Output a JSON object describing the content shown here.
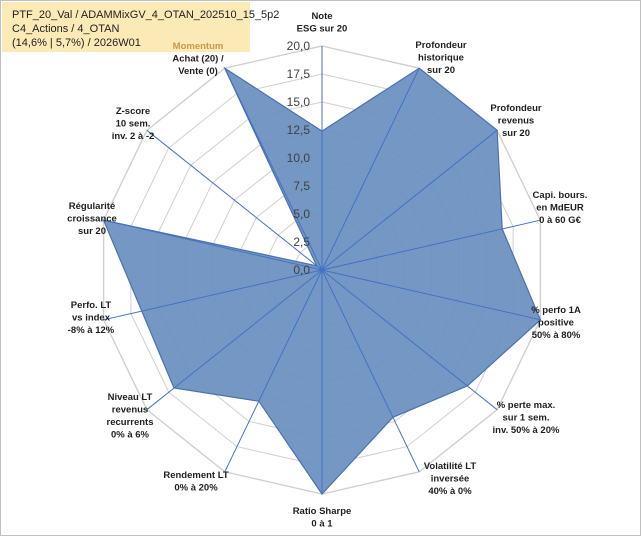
{
  "header": {
    "line1": "PTF_20_Val / ADAMMixGV_4_OTAN_202510_15_5p2",
    "line2": "C4_Actions / 4_OTAN",
    "line3": "(14,6% | 5,7%) / 2026W01"
  },
  "chart_data": {
    "type": "radar",
    "rmax": 20,
    "ticks": [
      "0,0",
      "2,5",
      "5,0",
      "7,5",
      "10,0",
      "12,5",
      "15,0",
      "17,5",
      "20,0"
    ],
    "axes": [
      {
        "lines": [
          "Note",
          "ESG sur 20"
        ],
        "value": 12.4
      },
      {
        "lines": [
          "Profondeur",
          "historique",
          "sur 20"
        ],
        "value": 20
      },
      {
        "lines": [
          "Profondeur",
          "revenus",
          "sur 20"
        ],
        "value": 20
      },
      {
        "lines": [
          "Capi. bours.",
          "en MdEUR",
          "0 à 60 G€"
        ],
        "value": 16.5
      },
      {
        "lines": [
          "% perfo 1A",
          "positive",
          "50% à 80%"
        ],
        "value": 20
      },
      {
        "lines": [
          "% perte max.",
          "sur 1 sem.",
          "inv. 50% à 20%"
        ],
        "value": 16.6
      },
      {
        "lines": [
          "Volatilité LT",
          "inversée",
          "40% à 0%"
        ],
        "value": 14.6
      },
      {
        "lines": [
          "Ratio Sharpe",
          "0 à 1"
        ],
        "value": 20
      },
      {
        "lines": [
          "Rendement LT",
          "0% à 20%"
        ],
        "value": 13.0
      },
      {
        "lines": [
          "Niveau LT",
          "revenus",
          "recurrents",
          "0% à 6%"
        ],
        "value": 16.9
      },
      {
        "lines": [
          "Perfo. LT",
          "vs index",
          "-8% à 12%"
        ],
        "value": 16.5
      },
      {
        "lines": [
          "Régularité",
          "croissance",
          "sur 20"
        ],
        "value": 20
      },
      {
        "lines": [
          "Z-score",
          "10 sem.",
          "inv. 2 à -2"
        ],
        "value": 0.6
      },
      {
        "lines": [
          "Momentum",
          "Achat (20) /",
          "Vente (0)"
        ],
        "value": 20
      }
    ],
    "colors": {
      "fill": "#6b8fbf",
      "stroke": "#4a72ad",
      "grid": "#d0d0d0",
      "spoke": "#4472c4"
    }
  }
}
